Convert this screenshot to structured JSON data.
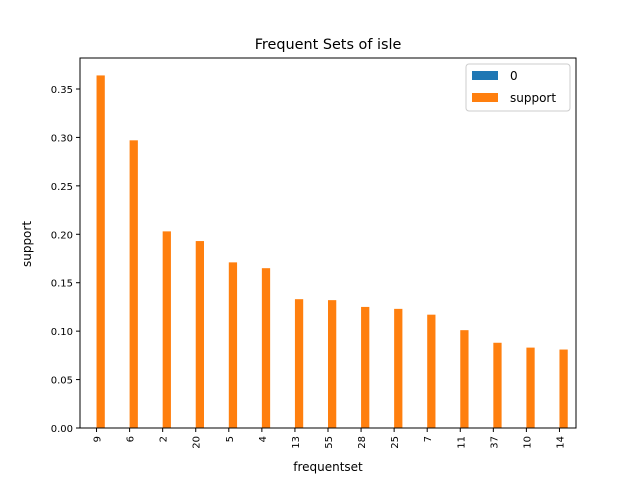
{
  "chart_data": {
    "type": "bar",
    "title": "Frequent Sets of isle",
    "xlabel": "frequentset",
    "ylabel": "support",
    "categories": [
      "9",
      "6",
      "2",
      "20",
      "5",
      "4",
      "13",
      "55",
      "28",
      "25",
      "7",
      "11",
      "37",
      "10",
      "14"
    ],
    "series": [
      {
        "name": "0",
        "color": "#1f77b4",
        "values": [
          0,
          0,
          0,
          0,
          0,
          0,
          0,
          0,
          0,
          0,
          0,
          0,
          0,
          0,
          0
        ]
      },
      {
        "name": "support",
        "color": "#ff7f0e",
        "values": [
          0.364,
          0.297,
          0.203,
          0.193,
          0.171,
          0.165,
          0.133,
          0.132,
          0.125,
          0.123,
          0.117,
          0.101,
          0.088,
          0.083,
          0.081
        ]
      }
    ],
    "ylim": [
      0,
      0.382
    ],
    "yticks": [
      "0.00",
      "0.05",
      "0.10",
      "0.15",
      "0.20",
      "0.25",
      "0.30",
      "0.35"
    ],
    "grid": false,
    "legend_position": "top-right"
  }
}
